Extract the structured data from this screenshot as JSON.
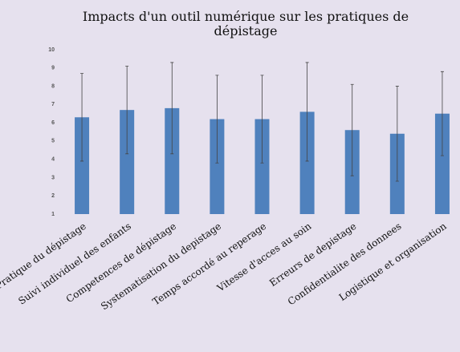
{
  "chart_data": {
    "type": "bar",
    "title": "Impacts d'un outil numérique sur les pratiques de dépistage",
    "categories": [
      "Pratique du dépistage",
      "Suivi individuel des enfants",
      "Competences de dépistage",
      "Systematisation du depistage",
      "Temps accordé au reperage",
      "Vitesse d'acces au soin",
      "Erreurs de depistage",
      "Confidentialite des donnees",
      "Logistique et organisation"
    ],
    "values": [
      6.3,
      6.7,
      6.8,
      6.2,
      6.2,
      6.6,
      5.6,
      5.4,
      6.5
    ],
    "errors": [
      2.4,
      2.4,
      2.5,
      2.4,
      2.4,
      2.7,
      2.5,
      2.6,
      2.3
    ],
    "color": "#4f81bd",
    "ylim": [
      1,
      10
    ],
    "yticks": [
      1,
      2,
      3,
      4,
      5,
      6,
      7,
      8,
      9,
      10
    ],
    "grid": false
  }
}
